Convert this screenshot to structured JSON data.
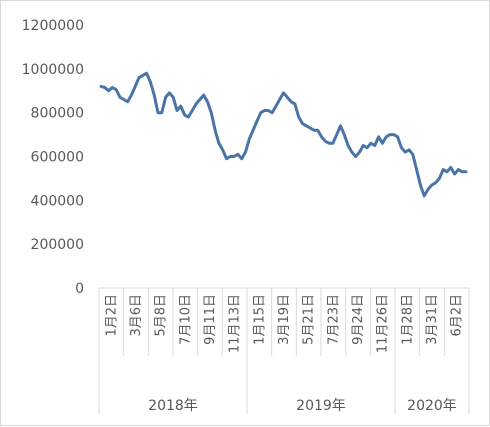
{
  "chart_data": {
    "type": "line",
    "series_color": "#4A74A8",
    "ylim": [
      0,
      1200000
    ],
    "y_ticks": [
      "0",
      "200000",
      "400000",
      "600000",
      "800000",
      "1000000",
      "1200000"
    ],
    "x_ticks": [
      "1月2日",
      "3月6日",
      "5月8日",
      "7月10日",
      "9月11日",
      "11月13日",
      "1月15日",
      "3月19日",
      "5月21日",
      "7月23日",
      "9月24日",
      "11月26日",
      "1月28日",
      "3月31日",
      "6月2日"
    ],
    "years": [
      "2018年",
      "2019年",
      "2020年"
    ],
    "y": [
      920000,
      915000,
      900000,
      915000,
      905000,
      870000,
      860000,
      850000,
      880000,
      920000,
      960000,
      970000,
      980000,
      940000,
      880000,
      800000,
      800000,
      870000,
      890000,
      870000,
      810000,
      830000,
      790000,
      780000,
      810000,
      840000,
      860000,
      880000,
      850000,
      800000,
      720000,
      660000,
      630000,
      590000,
      600000,
      600000,
      610000,
      590000,
      620000,
      680000,
      720000,
      760000,
      800000,
      810000,
      810000,
      800000,
      830000,
      860000,
      890000,
      870000,
      850000,
      840000,
      780000,
      750000,
      740000,
      730000,
      720000,
      720000,
      690000,
      670000,
      660000,
      660000,
      700000,
      740000,
      700000,
      650000,
      620000,
      600000,
      620000,
      650000,
      640000,
      660000,
      650000,
      690000,
      660000,
      690000,
      700000,
      700000,
      690000,
      640000,
      620000,
      630000,
      610000,
      540000,
      470000,
      420000,
      450000,
      470000,
      480000,
      500000,
      540000,
      530000,
      550000,
      520000,
      540000,
      530000,
      530000
    ]
  }
}
